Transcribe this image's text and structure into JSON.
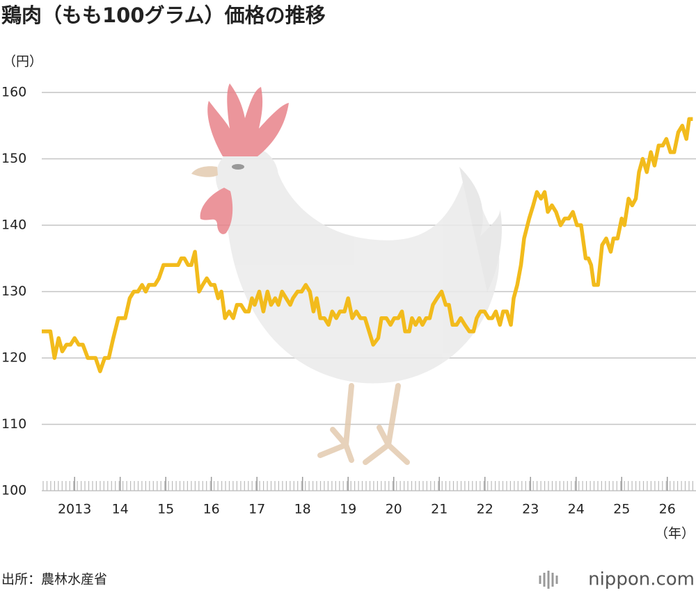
{
  "chart_data": {
    "type": "line",
    "title": "鶏肉（もも100グラム）価格の推移",
    "y_label": "（円）",
    "x_label": "（年）",
    "source": "出所：農林水産省",
    "brand": "nippon.com",
    "xlim": [
      2012.28,
      2026.63
    ],
    "ylim": [
      100,
      160
    ],
    "yticks": [
      100,
      110,
      120,
      130,
      140,
      150,
      160
    ],
    "xticks": [
      {
        "value": 2013,
        "label": "2013"
      },
      {
        "value": 2014,
        "label": "14"
      },
      {
        "value": 2015,
        "label": "15"
      },
      {
        "value": 2016,
        "label": "16"
      },
      {
        "value": 2017,
        "label": "17"
      },
      {
        "value": 2018,
        "label": "18"
      },
      {
        "value": 2019,
        "label": "19"
      },
      {
        "value": 2020,
        "label": "20"
      },
      {
        "value": 2021,
        "label": "21"
      },
      {
        "value": 2022,
        "label": "22"
      },
      {
        "value": 2023,
        "label": "23"
      },
      {
        "value": 2024,
        "label": "24"
      },
      {
        "value": 2025,
        "label": "25"
      },
      {
        "value": 2026,
        "label": "26"
      }
    ],
    "grid": true,
    "x": [
      2012.28,
      2012.47,
      2012.56,
      2012.65,
      2012.73,
      2012.82,
      2012.91,
      2013.0,
      2013.09,
      2013.18,
      2013.29,
      2013.4,
      2013.46,
      2013.56,
      2013.66,
      2013.75,
      2013.85,
      2013.96,
      2014.11,
      2014.21,
      2014.3,
      2014.39,
      2014.48,
      2014.56,
      2014.63,
      2014.76,
      2014.85,
      2014.95,
      2015.11,
      2015.27,
      2015.34,
      2015.41,
      2015.49,
      2015.56,
      2015.64,
      2015.73,
      2015.81,
      2015.9,
      2015.99,
      2016.07,
      2016.15,
      2016.22,
      2016.3,
      2016.39,
      2016.48,
      2016.56,
      2016.65,
      2016.74,
      2016.82,
      2016.89,
      2016.95,
      2017.05,
      2017.14,
      2017.23,
      2017.31,
      2017.4,
      2017.47,
      2017.55,
      2017.64,
      2017.73,
      2017.79,
      2017.89,
      2017.98,
      2018.07,
      2018.16,
      2018.24,
      2018.31,
      2018.39,
      2018.48,
      2018.57,
      2018.65,
      2018.74,
      2018.82,
      2018.92,
      2019.0,
      2019.09,
      2019.18,
      2019.27,
      2019.37,
      2019.46,
      2019.55,
      2019.66,
      2019.73,
      2019.84,
      2019.93,
      2020.01,
      2020.1,
      2020.18,
      2020.25,
      2020.34,
      2020.4,
      2020.48,
      2020.56,
      2020.63,
      2020.71,
      2020.79,
      2020.86,
      2020.95,
      2021.05,
      2021.14,
      2021.21,
      2021.29,
      2021.38,
      2021.47,
      2021.56,
      2021.66,
      2021.75,
      2021.82,
      2021.9,
      2021.99,
      2022.08,
      2022.16,
      2022.24,
      2022.33,
      2022.4,
      2022.48,
      2022.57,
      2022.63,
      2022.71,
      2022.79,
      2022.86,
      2022.97,
      2023.06,
      2023.14,
      2023.23,
      2023.31,
      2023.38,
      2023.47,
      2023.56,
      2023.66,
      2023.75,
      2023.84,
      2023.93,
      2024.02,
      2024.11,
      2024.21,
      2024.27,
      2024.33,
      2024.39,
      2024.48,
      2024.57,
      2024.66,
      2024.76,
      2024.82,
      2024.91,
      2025.0,
      2025.06,
      2025.15,
      2025.23,
      2025.31,
      2025.38,
      2025.46,
      2025.55,
      2025.64,
      2025.72,
      2025.81,
      2025.9,
      2025.98,
      2026.07,
      2026.15,
      2026.24,
      2026.33,
      2026.42,
      2026.48,
      2026.56
    ],
    "series": [
      {
        "name": "鶏肉（もも100グラム）",
        "color": "#f2bb1c",
        "values": [
          124,
          124,
          120,
          123,
          121,
          122,
          122,
          123,
          122,
          122,
          120,
          120,
          120,
          118,
          120,
          120,
          123,
          126,
          126,
          129,
          130,
          130,
          131,
          130,
          131,
          131,
          132,
          134,
          134,
          134,
          135,
          135,
          134,
          134,
          136,
          130,
          131,
          132,
          131,
          131,
          129,
          130,
          126,
          127,
          126,
          128,
          128,
          127,
          127,
          129,
          128,
          130,
          127,
          130,
          128,
          129,
          128,
          130,
          129,
          128,
          129,
          130,
          130,
          131,
          130,
          127,
          129,
          126,
          126,
          125,
          127,
          126,
          127,
          127,
          129,
          126,
          127,
          126,
          126,
          124,
          122,
          123,
          126,
          126,
          125,
          126,
          126,
          127,
          124,
          124,
          126,
          125,
          126,
          125,
          126,
          126,
          128,
          129,
          130,
          128,
          128,
          125,
          125,
          126,
          125,
          124,
          124,
          126,
          127,
          127,
          126,
          126,
          127,
          125,
          127,
          127,
          125,
          129,
          131,
          134,
          138,
          141,
          143,
          145,
          144,
          145,
          142,
          143,
          142,
          140,
          141,
          141,
          142,
          140,
          140,
          135,
          135,
          134,
          131,
          131,
          137,
          138,
          136,
          138,
          138,
          141,
          140,
          144,
          143,
          144,
          148,
          150,
          148,
          151,
          149,
          152,
          152,
          153,
          151,
          151,
          154,
          155,
          153,
          156,
          156
        ]
      }
    ]
  }
}
